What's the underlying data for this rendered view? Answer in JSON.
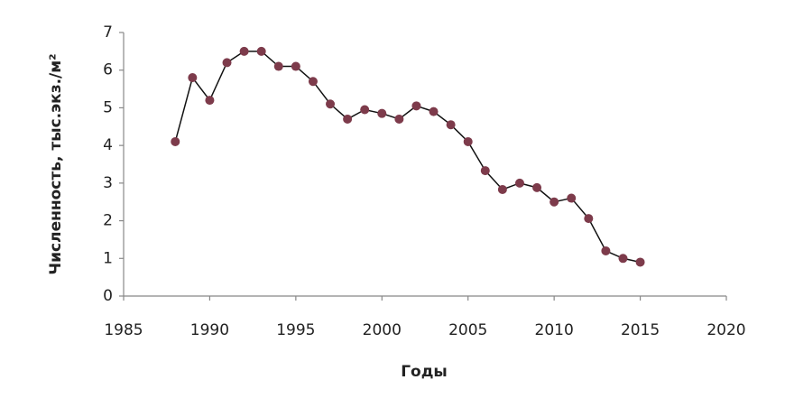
{
  "chart_data": {
    "type": "line",
    "x_label": "Годы",
    "y_label": "Численность, тыс.экз./м²",
    "x": [
      1988,
      1989,
      1990,
      1991,
      1992,
      1993,
      1994,
      1995,
      1996,
      1997,
      1998,
      1999,
      2000,
      2001,
      2002,
      2003,
      2004,
      2005,
      2006,
      2007,
      2008,
      2009,
      2010,
      2011,
      2012,
      2013,
      2014,
      2015
    ],
    "series": [
      {
        "color": "#7d3b4b",
        "line_color": "#111111",
        "values": [
          4.1,
          5.8,
          5.2,
          6.2,
          6.5,
          6.5,
          6.1,
          6.1,
          5.7,
          5.1,
          4.7,
          4.95,
          4.85,
          4.7,
          5.05,
          4.9,
          4.55,
          4.1,
          3.33,
          2.83,
          3.0,
          2.88,
          2.5,
          2.6,
          2.06,
          1.2,
          1.0,
          0.9
        ]
      }
    ],
    "xlim": [
      1985,
      2020
    ],
    "xticks": [
      1985,
      1990,
      1995,
      2000,
      2005,
      2010,
      2015,
      2020
    ],
    "ylim": [
      0,
      7
    ],
    "yticks": [
      0,
      1,
      2,
      3,
      4,
      5,
      6,
      7
    ]
  }
}
